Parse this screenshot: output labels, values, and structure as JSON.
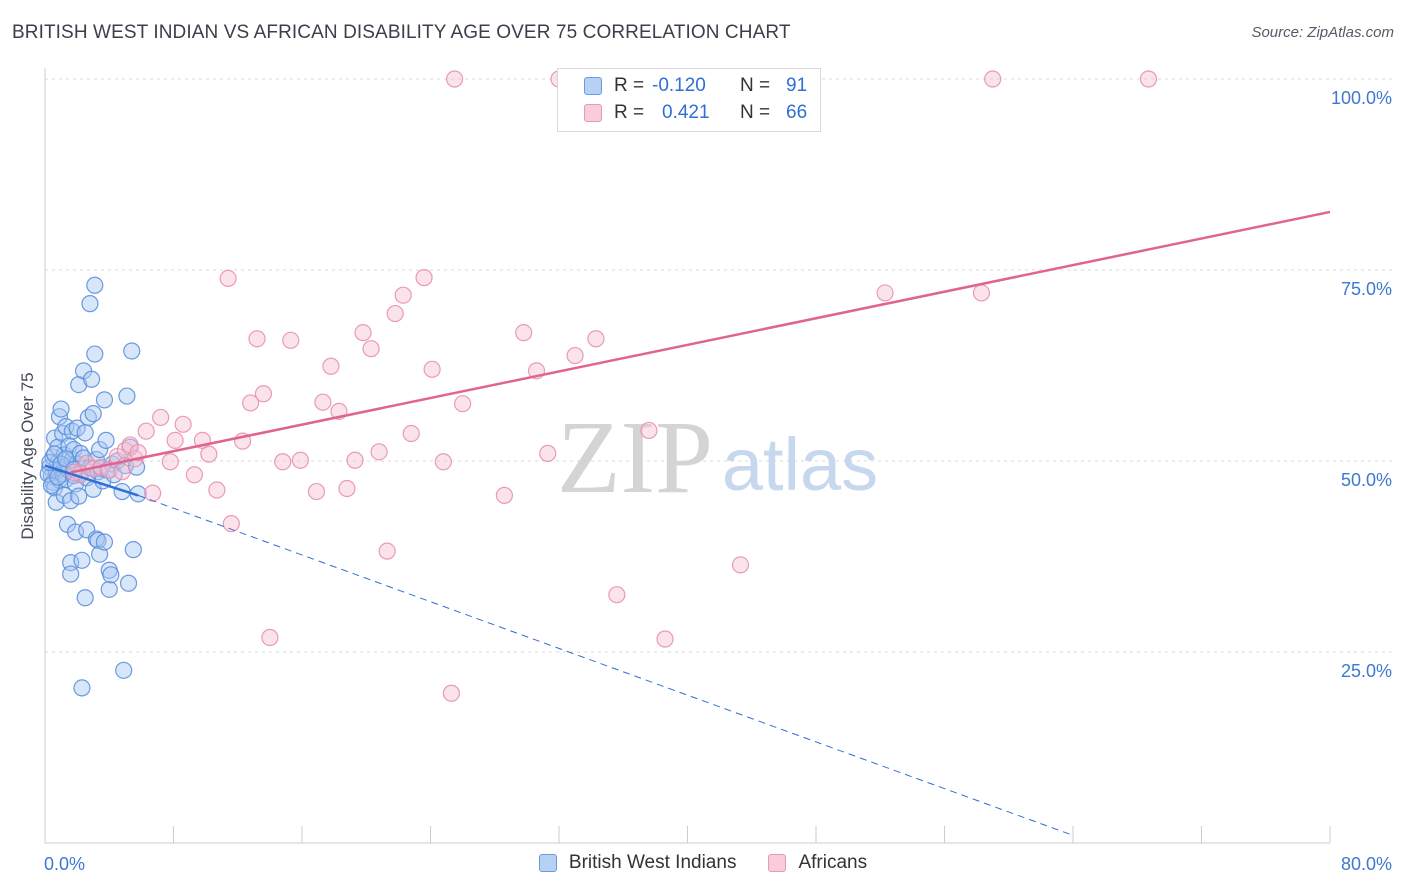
{
  "title": "BRITISH WEST INDIAN VS AFRICAN DISABILITY AGE OVER 75 CORRELATION CHART",
  "source": "Source: ZipAtlas.com",
  "watermark": {
    "zip": "ZIP",
    "atlas": "atlas"
  },
  "colors": {
    "blue_fill": "#a9c8f2",
    "blue_stroke": "#5b8fdc",
    "blue_line": "#2f6fd6",
    "pink_fill": "#f6c0d2",
    "pink_stroke": "#e890ae",
    "pink_line": "#e06392",
    "axis_text": "#3d78d2",
    "grid": "#d6d9de"
  },
  "legend": {
    "rows": [
      {
        "r_label": "R =",
        "r_value": "-0.120",
        "n_label": "N =",
        "n_value": "91",
        "series": "blue"
      },
      {
        "r_label": "R =",
        "r_value": "0.421",
        "n_label": "N =",
        "n_value": "66",
        "series": "pink"
      }
    ]
  },
  "bottom_legend": [
    {
      "label": "British West Indians",
      "series": "blue"
    },
    {
      "label": "Africans",
      "series": "pink"
    }
  ],
  "chart_data": {
    "type": "scatter",
    "title": "BRITISH WEST INDIAN VS AFRICAN DISABILITY AGE OVER 75 CORRELATION CHART",
    "xlabel": "",
    "ylabel": "Disability Age Over 75",
    "xlim": [
      0,
      80
    ],
    "ylim": [
      0,
      100
    ],
    "x_tick_labels": [
      "0.0%",
      "80.0%"
    ],
    "y_ticks": [
      25,
      50,
      75,
      100
    ],
    "y_tick_labels": [
      "25.0%",
      "50.0%",
      "75.0%",
      "100.0%"
    ],
    "grid": true,
    "series": [
      {
        "name": "British West Indians",
        "color": "blue",
        "r": -0.12,
        "n": 91,
        "trend": {
          "solid": [
            [
              0,
              49.4
            ],
            [
              5.8,
              45.5
            ]
          ],
          "dashed": [
            [
              5.8,
              45.5
            ],
            [
              64,
              1.0
            ]
          ]
        },
        "points": [
          [
            0.3,
            49.2
          ],
          [
            0.4,
            48.0
          ],
          [
            0.5,
            47.2
          ],
          [
            0.5,
            50.5
          ],
          [
            0.6,
            46.5
          ],
          [
            0.6,
            53.0
          ],
          [
            0.7,
            48.6
          ],
          [
            0.7,
            44.6
          ],
          [
            0.8,
            51.8
          ],
          [
            0.8,
            49.8
          ],
          [
            0.9,
            55.8
          ],
          [
            0.9,
            47.5
          ],
          [
            1.0,
            56.8
          ],
          [
            1.0,
            49.0
          ],
          [
            1.1,
            53.6
          ],
          [
            1.1,
            48.3
          ],
          [
            1.2,
            45.5
          ],
          [
            1.2,
            50.8
          ],
          [
            1.3,
            54.5
          ],
          [
            1.3,
            47.6
          ],
          [
            1.4,
            41.7
          ],
          [
            1.4,
            49.4
          ],
          [
            1.5,
            52.0
          ],
          [
            1.5,
            48.8
          ],
          [
            1.6,
            36.7
          ],
          [
            1.6,
            35.2
          ],
          [
            1.6,
            44.8
          ],
          [
            1.7,
            50.2
          ],
          [
            1.7,
            53.9
          ],
          [
            1.8,
            48.1
          ],
          [
            1.8,
            51.5
          ],
          [
            1.9,
            40.7
          ],
          [
            1.9,
            47.0
          ],
          [
            2.0,
            54.3
          ],
          [
            2.0,
            49.6
          ],
          [
            2.1,
            45.4
          ],
          [
            2.1,
            60.0
          ],
          [
            2.2,
            51.0
          ],
          [
            2.2,
            48.4
          ],
          [
            2.3,
            37.0
          ],
          [
            2.3,
            20.3
          ],
          [
            2.4,
            61.8
          ],
          [
            2.4,
            50.4
          ],
          [
            2.5,
            32.1
          ],
          [
            2.5,
            53.7
          ],
          [
            2.6,
            47.8
          ],
          [
            2.6,
            41.0
          ],
          [
            2.7,
            55.7
          ],
          [
            2.8,
            70.6
          ],
          [
            2.8,
            49.1
          ],
          [
            2.9,
            60.7
          ],
          [
            3.0,
            56.2
          ],
          [
            3.0,
            46.3
          ],
          [
            3.1,
            64.0
          ],
          [
            3.1,
            73.0
          ],
          [
            3.2,
            39.8
          ],
          [
            3.2,
            50.2
          ],
          [
            3.3,
            48.6
          ],
          [
            3.3,
            39.6
          ],
          [
            3.4,
            51.5
          ],
          [
            3.4,
            37.8
          ],
          [
            3.5,
            49.0
          ],
          [
            3.6,
            47.4
          ],
          [
            3.7,
            58.0
          ],
          [
            3.7,
            39.4
          ],
          [
            3.8,
            52.7
          ],
          [
            3.9,
            48.8
          ],
          [
            4.0,
            35.7
          ],
          [
            4.0,
            33.2
          ],
          [
            4.1,
            35.1
          ],
          [
            4.2,
            49.6
          ],
          [
            4.3,
            48.2
          ],
          [
            4.5,
            50.0
          ],
          [
            4.8,
            46.0
          ],
          [
            4.9,
            22.6
          ],
          [
            5.0,
            49.4
          ],
          [
            5.1,
            58.5
          ],
          [
            5.2,
            34.0
          ],
          [
            5.3,
            51.8
          ],
          [
            5.4,
            64.4
          ],
          [
            5.5,
            38.4
          ],
          [
            5.7,
            49.2
          ],
          [
            5.8,
            45.7
          ],
          [
            0.2,
            48.3
          ],
          [
            0.3,
            49.8
          ],
          [
            0.4,
            46.8
          ],
          [
            0.6,
            50.9
          ],
          [
            0.8,
            47.9
          ],
          [
            1.0,
            49.6
          ],
          [
            1.3,
            50.3
          ],
          [
            1.8,
            48.9
          ]
        ]
      },
      {
        "name": "Africans",
        "color": "pink",
        "r": 0.421,
        "n": 66,
        "trend": {
          "solid": [
            [
              1.6,
              48.5
            ],
            [
              80,
              82.6
            ]
          ]
        },
        "points": [
          [
            2.2,
            48.2
          ],
          [
            2.6,
            49.7
          ],
          [
            3.0,
            49.0
          ],
          [
            3.5,
            49.2
          ],
          [
            4.0,
            48.8
          ],
          [
            4.5,
            50.6
          ],
          [
            4.8,
            48.6
          ],
          [
            5.0,
            51.4
          ],
          [
            5.3,
            52.1
          ],
          [
            5.6,
            50.3
          ],
          [
            5.8,
            51.1
          ],
          [
            6.3,
            53.9
          ],
          [
            6.7,
            45.8
          ],
          [
            7.2,
            55.7
          ],
          [
            7.8,
            49.9
          ],
          [
            8.1,
            52.7
          ],
          [
            8.6,
            54.8
          ],
          [
            9.3,
            48.2
          ],
          [
            9.8,
            52.7
          ],
          [
            10.2,
            50.9
          ],
          [
            10.7,
            46.2
          ],
          [
            11.4,
            73.9
          ],
          [
            11.6,
            41.8
          ],
          [
            12.3,
            52.6
          ],
          [
            12.8,
            57.6
          ],
          [
            13.2,
            66.0
          ],
          [
            13.6,
            58.8
          ],
          [
            14.0,
            26.9
          ],
          [
            14.8,
            49.9
          ],
          [
            15.3,
            65.8
          ],
          [
            15.9,
            50.1
          ],
          [
            16.9,
            46.0
          ],
          [
            17.3,
            57.7
          ],
          [
            17.8,
            62.4
          ],
          [
            18.3,
            56.5
          ],
          [
            18.8,
            46.4
          ],
          [
            19.3,
            50.1
          ],
          [
            19.8,
            66.8
          ],
          [
            20.3,
            64.7
          ],
          [
            20.8,
            51.2
          ],
          [
            21.3,
            38.2
          ],
          [
            21.8,
            69.3
          ],
          [
            22.3,
            71.7
          ],
          [
            22.8,
            53.6
          ],
          [
            23.6,
            74.0
          ],
          [
            24.1,
            62.0
          ],
          [
            24.8,
            49.9
          ],
          [
            25.3,
            19.6
          ],
          [
            26.0,
            57.5
          ],
          [
            28.6,
            45.5
          ],
          [
            29.8,
            66.8
          ],
          [
            30.6,
            61.8
          ],
          [
            31.3,
            51.0
          ],
          [
            33.0,
            63.8
          ],
          [
            34.3,
            66.0
          ],
          [
            35.6,
            32.5
          ],
          [
            37.6,
            54.0
          ],
          [
            38.6,
            26.7
          ],
          [
            43.3,
            36.4
          ],
          [
            52.3,
            72.0
          ],
          [
            58.3,
            72.0
          ],
          [
            25.5,
            100.0
          ],
          [
            32.0,
            100.0
          ],
          [
            59.0,
            100.0
          ],
          [
            68.7,
            100.0
          ],
          [
            1.8,
            48.5
          ]
        ]
      }
    ]
  }
}
